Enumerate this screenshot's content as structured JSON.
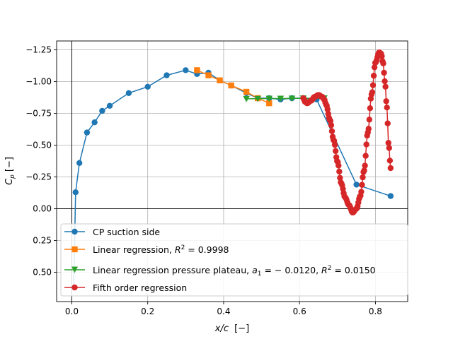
{
  "chart_data": {
    "type": "line",
    "xlabel_main": "x/c",
    "xlabel_unit": "[−]",
    "ylabel_main": "C",
    "ylabel_sub": "p",
    "ylabel_unit": "[−]",
    "xlim": [
      -0.04,
      0.885
    ],
    "ylim": [
      0.73,
      -1.32
    ],
    "y_inverted": true,
    "grid": true,
    "legend_position": "lower-right",
    "x_ticks": [
      0.0,
      0.2,
      0.4,
      0.6,
      0.8
    ],
    "x_tick_labels": [
      "0.0",
      "0.2",
      "0.4",
      "0.6",
      "0.8"
    ],
    "y_ticks": [
      -1.25,
      -1.0,
      -0.75,
      -0.5,
      -0.25,
      0.0,
      0.25,
      0.5
    ],
    "y_tick_labels": [
      "−1.25",
      "−1.00",
      "−0.75",
      "−0.50",
      "−0.25",
      "0.00",
      "0.25",
      "0.50"
    ],
    "reference_lines": {
      "x": 0.0,
      "y": 0.0
    },
    "series": [
      {
        "name": "CP suction side",
        "color": "#1f77b4",
        "marker": "circle",
        "x": [
          0.005,
          0.01,
          0.02,
          0.04,
          0.06,
          0.08,
          0.1,
          0.15,
          0.2,
          0.25,
          0.3,
          0.33,
          0.36,
          0.39,
          0.42,
          0.46,
          0.49,
          0.52,
          0.55,
          0.58,
          0.61,
          0.645,
          0.75,
          0.84
        ],
        "y": [
          0.62,
          -0.13,
          -0.36,
          -0.6,
          -0.68,
          -0.77,
          -0.81,
          -0.91,
          -0.96,
          -1.05,
          -1.09,
          -1.06,
          -1.07,
          -1.01,
          -0.97,
          -0.91,
          -0.87,
          -0.87,
          -0.86,
          -0.87,
          -0.87,
          -0.86,
          -0.19,
          -0.1
        ]
      },
      {
        "name": "Linear regression, ",
        "name_math": "R",
        "name_sup": "2",
        "name_value": " = 0.9998",
        "color": "#ff7f0e",
        "marker": "square",
        "x": [
          0.33,
          0.36,
          0.39,
          0.42,
          0.46,
          0.49,
          0.52
        ],
        "y": [
          -1.09,
          -1.05,
          -1.01,
          -0.97,
          -0.92,
          -0.87,
          -0.83
        ]
      },
      {
        "name": "Linear regression pressure plateau, ",
        "name_math1": "a",
        "name_sub1": "1",
        "name_value1": " = − 0.0120, ",
        "name_math2": "R",
        "name_sup2": "2",
        "name_value2": " = 0.0150",
        "color": "#2ca02c",
        "marker": "triangle-down",
        "x": [
          0.46,
          0.49,
          0.52,
          0.55,
          0.58,
          0.61,
          0.64,
          0.665
        ],
        "y": [
          -0.865,
          -0.866,
          -0.867,
          -0.867,
          -0.868,
          -0.869,
          -0.87,
          -0.87
        ]
      },
      {
        "name": "Fifth order regression",
        "color": "#d62728",
        "marker": "circle",
        "x_start": 0.61,
        "x_end": 0.84,
        "points": 120,
        "curve_points": [
          [
            0.61,
            -0.87
          ],
          [
            0.615,
            -0.84
          ],
          [
            0.62,
            -0.83
          ],
          [
            0.63,
            -0.85
          ],
          [
            0.64,
            -0.88
          ],
          [
            0.65,
            -0.895
          ],
          [
            0.66,
            -0.88
          ],
          [
            0.665,
            -0.86
          ],
          [
            0.67,
            -0.82
          ],
          [
            0.68,
            -0.7
          ],
          [
            0.69,
            -0.54
          ],
          [
            0.7,
            -0.37
          ],
          [
            0.71,
            -0.2
          ],
          [
            0.72,
            -0.09
          ],
          [
            0.73,
            -0.03
          ],
          [
            0.74,
            0.03
          ],
          [
            0.75,
            0.0
          ],
          [
            0.76,
            -0.1
          ],
          [
            0.77,
            -0.3
          ],
          [
            0.78,
            -0.6
          ],
          [
            0.79,
            -0.9
          ],
          [
            0.8,
            -1.15
          ],
          [
            0.81,
            -1.23
          ],
          [
            0.815,
            -1.22
          ],
          [
            0.82,
            -1.15
          ],
          [
            0.825,
            -1.0
          ],
          [
            0.83,
            -0.8
          ],
          [
            0.835,
            -0.5
          ],
          [
            0.84,
            -0.32
          ],
          [
            0.843,
            -0.1
          ]
        ]
      }
    ]
  }
}
